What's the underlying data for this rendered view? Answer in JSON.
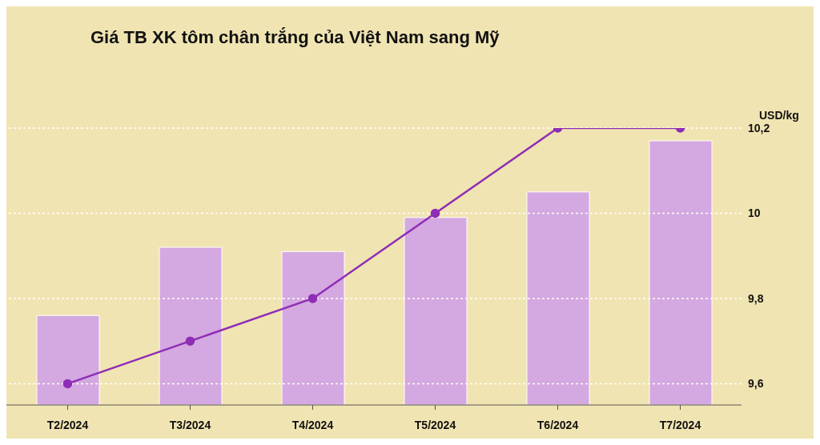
{
  "chart_data": {
    "type": "bar",
    "title": "Giá TB XK tôm chân trắng của Việt Nam sang Mỹ",
    "ylabel": "USD/kg",
    "categories": [
      "T2/2024",
      "T3/2024",
      "T4/2024",
      "T5/2024",
      "T6/2024",
      "T7/2024"
    ],
    "series": [
      {
        "color": "#d4a8e0",
        "values": [
          9.76,
          9.92,
          9.91,
          9.99,
          10.05,
          10.17
        ]
      },
      {
        "type": "line",
        "color": "#8e2db5",
        "values": [
          9.6,
          9.7,
          9.8,
          10.0,
          10.2,
          10.2
        ]
      }
    ],
    "ylim": [
      9.55,
      10.2
    ],
    "yticks": [
      {
        "value": 9.6,
        "label": "9,6"
      },
      {
        "value": 9.8,
        "label": "9,8"
      },
      10,
      {
        "value": 10.2,
        "label": "10,2"
      }
    ],
    "grid": "y",
    "legend": false,
    "marker": "circle",
    "line_style": "solid"
  }
}
